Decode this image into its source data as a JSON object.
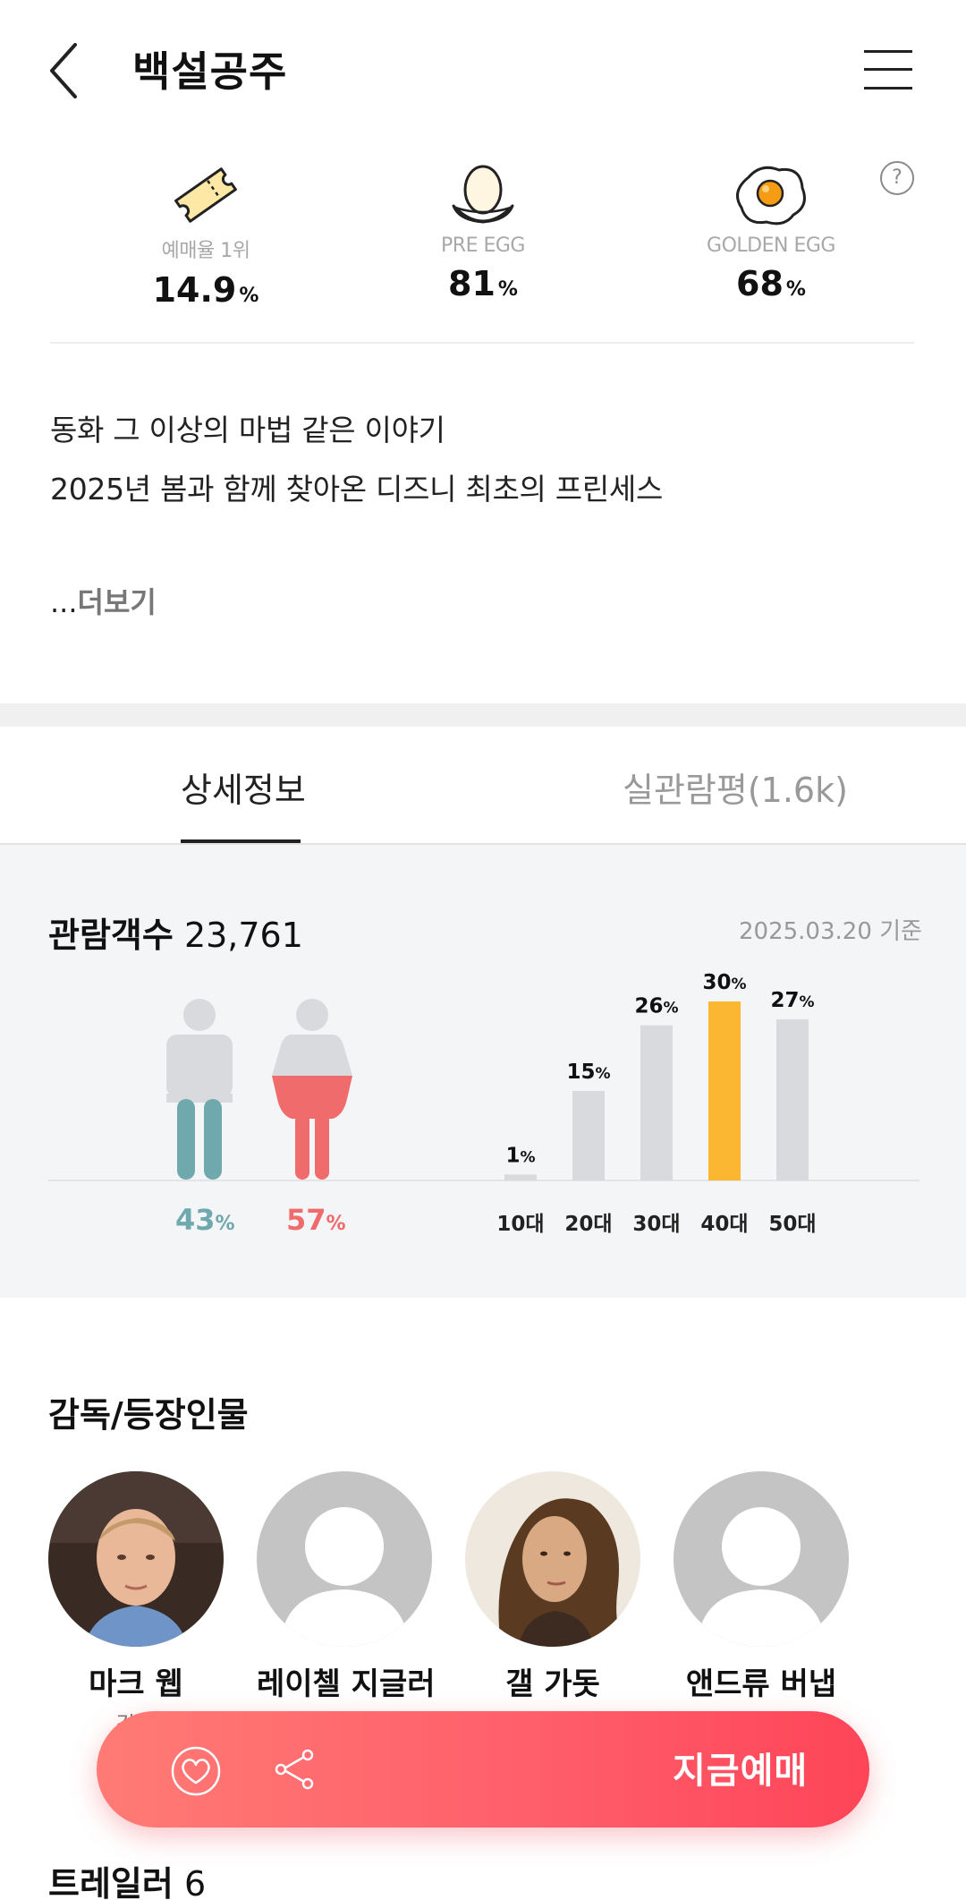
{
  "header": {
    "title": "백설공주",
    "back_icon": "chevron-left-icon",
    "menu_icon": "hamburger-menu-icon"
  },
  "stats": [
    {
      "icon": "ticket-icon",
      "label": "예매율 1위",
      "value": "14.9",
      "unit": "%"
    },
    {
      "icon": "egg-nest-icon",
      "label": "PRE EGG",
      "value": "81",
      "unit": "%"
    },
    {
      "icon": "fried-egg-icon",
      "label": "GOLDEN EGG",
      "value": "68",
      "unit": "%"
    }
  ],
  "help_label": "?",
  "description": {
    "line1": "동화 그 이상의 마법 같은 이야기",
    "line2": "2025년 봄과 함께 찾아온 디즈니 최초의 프린세스",
    "more_prefix": "...",
    "more_label": "더보기"
  },
  "tabs": {
    "detail": "상세정보",
    "review": "실관람평(1.6k)",
    "active": "상세정보"
  },
  "audience": {
    "title_bold": "관람객수",
    "count": "23,761",
    "date": "2025.03.20 기준",
    "male": {
      "value": "43",
      "unit": "%",
      "color": "#6fa9ad"
    },
    "female": {
      "value": "57",
      "unit": "%",
      "color": "#f06b6b"
    }
  },
  "chart_data": {
    "type": "bar",
    "categories": [
      "10대",
      "20대",
      "30대",
      "40대",
      "50대"
    ],
    "values": [
      1,
      15,
      26,
      30,
      27
    ],
    "unit": "%",
    "highlight": "40대",
    "bar_color": "#d8dadd",
    "highlight_color": "#fbb731"
  },
  "cast": {
    "title": "감독/등장인물",
    "people": [
      {
        "name": "마크 웹",
        "role": "감독",
        "photo": "photo"
      },
      {
        "name": "레이첼 지글러",
        "role": "",
        "photo": "placeholder"
      },
      {
        "name": "갤 가돗",
        "role": "",
        "photo": "photo"
      },
      {
        "name": "앤드류 버냅",
        "role": "",
        "photo": "placeholder"
      }
    ]
  },
  "trailer": {
    "label": "트레일러",
    "count": "6"
  },
  "booking_bar": {
    "like_icon": "heart-icon",
    "share_icon": "share-icon",
    "book_label": "지금예매"
  }
}
